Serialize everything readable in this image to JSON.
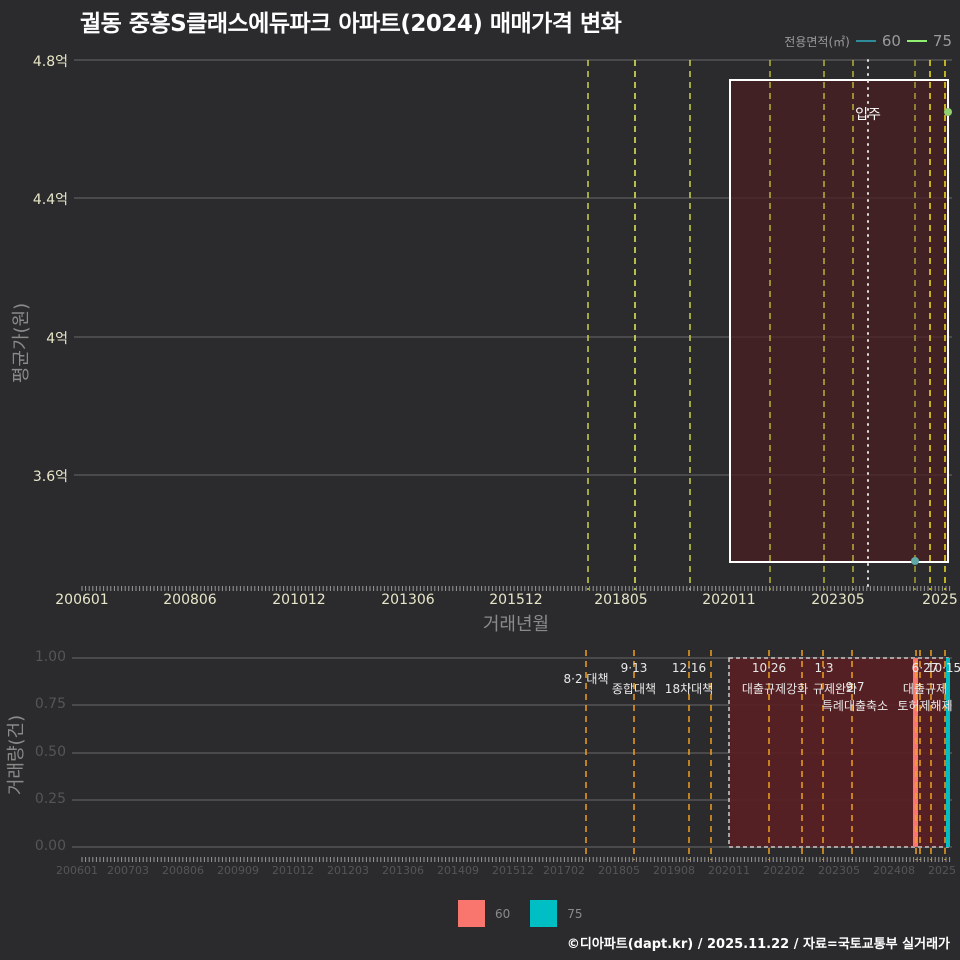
{
  "title": "궐동 중흥S클래스에듀파크 아파트(2024) 매매가격 변화",
  "legend_top": {
    "title": "전용면적(㎡)",
    "items": [
      {
        "label": "60",
        "color": "#2e8b9a"
      },
      {
        "label": "75",
        "color": "#90ee70"
      }
    ]
  },
  "legend_bottom": {
    "items": [
      {
        "label": "60",
        "color": "#f8766d"
      },
      {
        "label": "75",
        "color": "#00bfc4"
      }
    ]
  },
  "footer": "©디아파트(dapt.kr) / 2025.11.22 / 자료=국토교통부 실거래가",
  "top_chart": {
    "ylabel": "평균가(원)",
    "xlabel": "거래년월",
    "yticks": [
      "4.8억",
      "4.4억",
      "4억",
      "3.6억"
    ],
    "xticks": [
      "200601",
      "200806",
      "201012",
      "201306",
      "201512",
      "201805",
      "202011",
      "202305",
      "2025"
    ],
    "annotation": "입주"
  },
  "bottom_chart": {
    "ylabel": "거래량(건)",
    "yticks": [
      "1.00",
      "0.75",
      "0.50",
      "0.25",
      "0.00"
    ],
    "xticks": [
      "200601",
      "200703",
      "200806",
      "200909",
      "201012",
      "201203",
      "201306",
      "201409",
      "201512",
      "201702",
      "201805",
      "201908",
      "202011",
      "202202",
      "202305",
      "202408",
      "2025"
    ],
    "policy_labels": [
      {
        "date": "8·2 대책",
        "label": ""
      },
      {
        "date": "9·13",
        "label": "종합대책"
      },
      {
        "date": "12·16",
        "label": "18차대책"
      },
      {
        "date": "10·26",
        "label": "대출규제강화"
      },
      {
        "date": "1·3",
        "label": "규제완화"
      },
      {
        "date": "9·7",
        "label": "특례대출축소"
      },
      {
        "date": "6·27",
        "label": "대출규제"
      },
      {
        "date": "10·15",
        "label": "토허제해제"
      }
    ]
  },
  "chart_data": [
    {
      "type": "scatter",
      "title": "궐동 중흥S클래스에듀파크 아파트(2024) 매매가격 변화",
      "xlabel": "거래년월",
      "ylabel": "평균가(원)",
      "ylim": [
        3.3,
        4.86
      ],
      "y_unit": "억",
      "grid": true,
      "legend_position": "top-right",
      "x_ticks": [
        "200601",
        "200806",
        "201012",
        "201306",
        "201512",
        "201805",
        "202011",
        "202305",
        "2025"
      ],
      "series": [
        {
          "name": "60",
          "color": "#2e8b9a",
          "points": [
            {
              "x": "202410",
              "y": 3.35
            }
          ]
        },
        {
          "name": "75",
          "color": "#90ee70",
          "points": [
            {
              "x": "202511",
              "y": 4.65
            }
          ]
        }
      ],
      "annotations": [
        "입주 (202311)"
      ],
      "highlight_rect": {
        "x_from": "202101",
        "x_to": "202511",
        "y_from": 3.35,
        "y_to": 4.74
      }
    },
    {
      "type": "bar",
      "title": "",
      "xlabel": "",
      "ylabel": "거래량(건)",
      "ylim": [
        0,
        1.0
      ],
      "grid": true,
      "legend_position": "bottom",
      "categories": [
        "202410",
        "202511"
      ],
      "series": [
        {
          "name": "60",
          "color": "#f8766d",
          "values": [
            1,
            0
          ]
        },
        {
          "name": "75",
          "color": "#00bfc4",
          "values": [
            0,
            1
          ]
        }
      ],
      "vlines": [
        "201708 8·2 대책",
        "201809 9·13 종합대책",
        "201912 12·16 18차대책",
        "202110 10·26 대출규제강화",
        "202301 1·3 규제완화",
        "202309 9·7 특례대출축소",
        "202506 6·27 대출규제",
        "202510 10·15 토허제해제"
      ]
    }
  ]
}
